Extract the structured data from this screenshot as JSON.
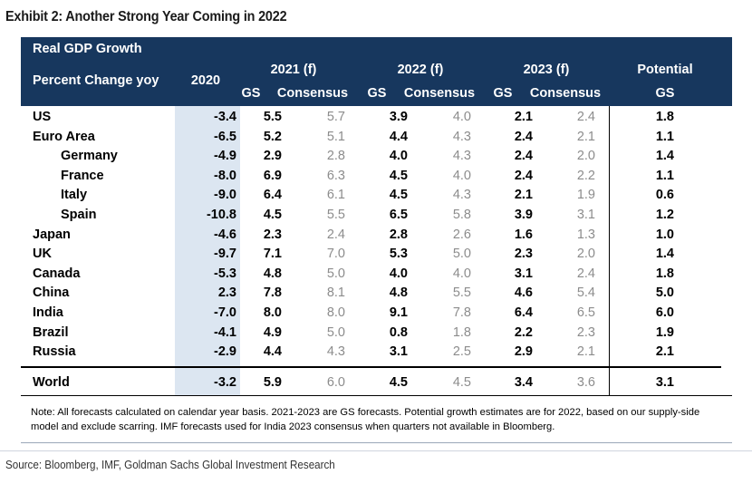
{
  "title": "Exhibit 2: Another Strong Year Coming in 2022",
  "header": {
    "label_line1": "Real GDP Growth",
    "label_line2": "Percent Change yoy",
    "col_2020": "2020",
    "groups": [
      {
        "year": "2021 (f)",
        "gs": "GS",
        "consensus": "Consensus"
      },
      {
        "year": "2022 (f)",
        "gs": "GS",
        "consensus": "Consensus"
      },
      {
        "year": "2023 (f)",
        "gs": "GS",
        "consensus": "Consensus"
      }
    ],
    "potential_line1": "Potential",
    "potential_line2": "GS"
  },
  "rows": [
    {
      "name": "US",
      "v2020": "-3.4",
      "gs21": "5.5",
      "c21": "5.7",
      "gs22": "3.9",
      "c22": "4.0",
      "gs23": "2.1",
      "c23": "2.4",
      "pot": "1.8"
    },
    {
      "name": "Euro Area",
      "v2020": "-6.5",
      "gs21": "5.2",
      "c21": "5.1",
      "gs22": "4.4",
      "c22": "4.3",
      "gs23": "2.4",
      "c23": "2.1",
      "pot": "1.1"
    },
    {
      "name": "Germany",
      "v2020": "-4.9",
      "gs21": "2.9",
      "c21": "2.8",
      "gs22": "4.0",
      "c22": "4.3",
      "gs23": "2.4",
      "c23": "2.0",
      "pot": "1.4"
    },
    {
      "name": "France",
      "v2020": "-8.0",
      "gs21": "6.9",
      "c21": "6.3",
      "gs22": "4.5",
      "c22": "4.0",
      "gs23": "2.4",
      "c23": "2.2",
      "pot": "1.1"
    },
    {
      "name": "Italy",
      "v2020": "-9.0",
      "gs21": "6.4",
      "c21": "6.1",
      "gs22": "4.5",
      "c22": "4.3",
      "gs23": "2.1",
      "c23": "1.9",
      "pot": "0.6"
    },
    {
      "name": "Spain",
      "v2020": "-10.8",
      "gs21": "4.5",
      "c21": "5.5",
      "gs22": "6.5",
      "c22": "5.8",
      "gs23": "3.9",
      "c23": "3.1",
      "pot": "1.2"
    },
    {
      "name": "Japan",
      "v2020": "-4.6",
      "gs21": "2.3",
      "c21": "2.4",
      "gs22": "2.8",
      "c22": "2.6",
      "gs23": "1.6",
      "c23": "1.3",
      "pot": "1.0"
    },
    {
      "name": "UK",
      "v2020": "-9.7",
      "gs21": "7.1",
      "c21": "7.0",
      "gs22": "5.3",
      "c22": "5.0",
      "gs23": "2.3",
      "c23": "2.0",
      "pot": "1.4"
    },
    {
      "name": "Canada",
      "v2020": "-5.3",
      "gs21": "4.8",
      "c21": "5.0",
      "gs22": "4.0",
      "c22": "4.0",
      "gs23": "3.1",
      "c23": "2.4",
      "pot": "1.8"
    },
    {
      "name": "China",
      "v2020": "2.3",
      "gs21": "7.8",
      "c21": "8.1",
      "gs22": "4.8",
      "c22": "5.5",
      "gs23": "4.6",
      "c23": "5.4",
      "pot": "5.0"
    },
    {
      "name": "India",
      "v2020": "-7.0",
      "gs21": "8.0",
      "c21": "8.0",
      "gs22": "9.1",
      "c22": "7.8",
      "gs23": "6.4",
      "c23": "6.5",
      "pot": "6.0"
    },
    {
      "name": "Brazil",
      "v2020": "-4.1",
      "gs21": "4.9",
      "c21": "5.0",
      "gs22": "0.8",
      "c22": "1.8",
      "gs23": "2.2",
      "c23": "2.3",
      "pot": "1.9"
    },
    {
      "name": "Russia",
      "v2020": "-2.9",
      "gs21": "4.4",
      "c21": "4.3",
      "gs22": "3.1",
      "c22": "2.5",
      "gs23": "2.9",
      "c23": "2.1",
      "pot": "2.1"
    }
  ],
  "world": {
    "name": "World",
    "v2020": "-3.2",
    "gs21": "5.9",
    "c21": "6.0",
    "gs22": "4.5",
    "c22": "4.5",
    "gs23": "3.4",
    "c23": "3.6",
    "pot": "3.1"
  },
  "note": "Note: All forecasts calculated on calendar year basis. 2021-2023 are GS forecasts. Potential growth estimates are for 2022, based on our supply-side model and exclude scarring. IMF forecasts used for India 2023 consensus when quarters not available in Bloomberg.",
  "source": "Source: Bloomberg, IMF, Goldman Sachs Global Investment Research",
  "colors": {
    "header_bg": "#17375e",
    "shade_2020": "#dce6f1",
    "consensus_text": "#8c8c8c"
  }
}
